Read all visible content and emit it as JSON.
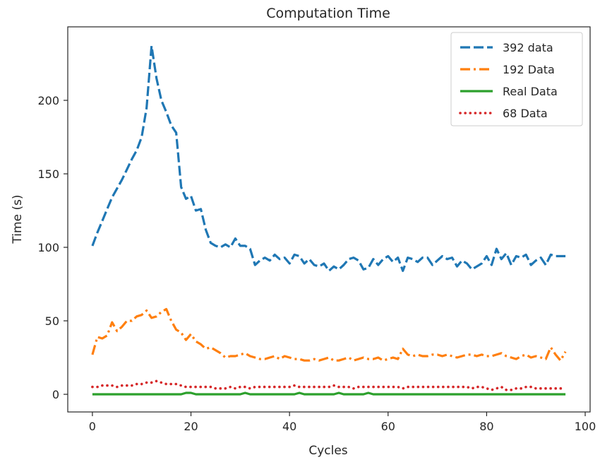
{
  "chart_data": {
    "type": "line",
    "title": "Computation Time",
    "xlabel": "Cycles",
    "ylabel": "Time (s)",
    "xlim": [
      -5,
      101
    ],
    "ylim": [
      -12,
      250
    ],
    "xticks": [
      0,
      20,
      40,
      60,
      80,
      100
    ],
    "yticks": [
      0,
      50,
      100,
      150,
      200
    ],
    "grid": false,
    "legend_position": "top-right",
    "x": [
      0,
      1,
      2,
      3,
      4,
      5,
      6,
      7,
      8,
      9,
      10,
      11,
      12,
      13,
      14,
      15,
      16,
      17,
      18,
      19,
      20,
      21,
      22,
      23,
      24,
      25,
      26,
      27,
      28,
      29,
      30,
      31,
      32,
      33,
      34,
      35,
      36,
      37,
      38,
      39,
      40,
      41,
      42,
      43,
      44,
      45,
      46,
      47,
      48,
      49,
      50,
      51,
      52,
      53,
      54,
      55,
      56,
      57,
      58,
      59,
      60,
      61,
      62,
      63,
      64,
      65,
      66,
      67,
      68,
      69,
      70,
      71,
      72,
      73,
      74,
      75,
      76,
      77,
      78,
      79,
      80,
      81,
      82,
      83,
      84,
      85,
      86,
      87,
      88,
      89,
      90,
      91,
      92,
      93,
      94,
      95,
      96
    ],
    "series": [
      {
        "name": "392 data",
        "color": "#1f77b4",
        "style": "dashed",
        "values": [
          101,
          110,
          118,
          126,
          134,
          140,
          146,
          153,
          160,
          166,
          175,
          195,
          237,
          215,
          200,
          192,
          183,
          178,
          141,
          133,
          135,
          125,
          126,
          112,
          103,
          101,
          100,
          102,
          100,
          106,
          101,
          101,
          99,
          88,
          91,
          93,
          91,
          95,
          92,
          93,
          89,
          95,
          94,
          89,
          92,
          88,
          87,
          89,
          84,
          87,
          85,
          88,
          92,
          93,
          91,
          85,
          86,
          92,
          88,
          92,
          94,
          90,
          93,
          84,
          93,
          92,
          90,
          93,
          93,
          88,
          91,
          94,
          92,
          93,
          87,
          91,
          89,
          85,
          87,
          89,
          94,
          88,
          99,
          92,
          96,
          88,
          94,
          93,
          95,
          88,
          91,
          93,
          88,
          95,
          94,
          94,
          94
        ]
      },
      {
        "name": "192 Data",
        "color": "#ff7f0e",
        "style": "dashdot",
        "values": [
          27,
          39,
          38,
          40,
          49,
          43,
          46,
          50,
          50,
          53,
          54,
          57,
          52,
          53,
          56,
          58,
          50,
          44,
          42,
          37,
          41,
          36,
          34,
          31,
          32,
          30,
          28,
          25,
          26,
          26,
          27,
          28,
          26,
          25,
          24,
          24,
          25,
          26,
          24,
          26,
          25,
          24,
          24,
          23,
          23,
          24,
          23,
          24,
          25,
          23,
          23,
          24,
          25,
          23,
          24,
          25,
          24,
          24,
          25,
          23,
          24,
          25,
          24,
          31,
          27,
          26,
          27,
          26,
          26,
          27,
          27,
          26,
          27,
          26,
          25,
          26,
          27,
          27,
          26,
          27,
          26,
          26,
          27,
          28,
          26,
          25,
          24,
          26,
          27,
          25,
          26,
          25,
          24,
          32,
          27,
          23,
          29
        ]
      },
      {
        "name": "Real Data",
        "color": "#2ca02c",
        "style": "solid",
        "values": [
          0,
          0,
          0,
          0,
          0,
          0,
          0,
          0,
          0,
          0,
          0,
          0,
          0,
          0,
          0,
          0,
          0,
          0,
          0,
          1,
          1,
          0,
          0,
          0,
          0,
          0,
          0,
          0,
          0,
          0,
          0,
          1,
          0,
          0,
          0,
          0,
          0,
          0,
          0,
          0,
          0,
          0,
          1,
          0,
          0,
          0,
          0,
          0,
          0,
          0,
          1,
          0,
          0,
          0,
          0,
          0,
          1,
          0,
          0,
          0,
          0,
          0,
          0,
          0,
          0,
          0,
          0,
          0,
          0,
          0,
          0,
          0,
          0,
          0,
          0,
          0,
          0,
          0,
          0,
          0,
          0,
          0,
          0,
          0,
          0,
          0,
          0,
          0,
          0,
          0,
          0,
          0,
          0,
          0,
          0,
          0,
          0
        ]
      },
      {
        "name": "68 Data",
        "color": "#d62728",
        "style": "dotted",
        "values": [
          5,
          5,
          6,
          6,
          6,
          5,
          6,
          6,
          6,
          7,
          7,
          8,
          8,
          9,
          8,
          7,
          7,
          7,
          6,
          5,
          5,
          5,
          5,
          5,
          5,
          4,
          4,
          4,
          5,
          4,
          5,
          5,
          4,
          5,
          5,
          5,
          5,
          5,
          5,
          5,
          5,
          6,
          5,
          5,
          5,
          5,
          5,
          5,
          5,
          6,
          5,
          5,
          5,
          4,
          5,
          5,
          5,
          5,
          5,
          5,
          5,
          5,
          5,
          4,
          5,
          5,
          5,
          5,
          5,
          5,
          5,
          5,
          5,
          5,
          5,
          5,
          5,
          4,
          5,
          5,
          4,
          3,
          4,
          5,
          3,
          3,
          4,
          4,
          5,
          5,
          4,
          4,
          4,
          4,
          4,
          4,
          4
        ]
      }
    ]
  }
}
